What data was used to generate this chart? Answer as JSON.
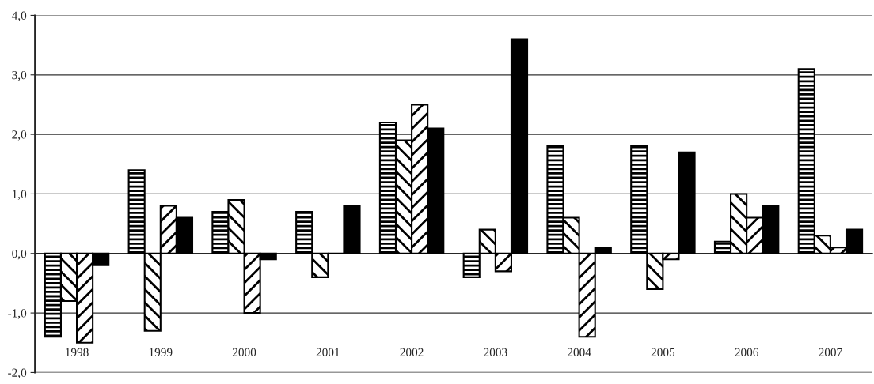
{
  "chart_data": {
    "type": "bar",
    "categories": [
      "1998",
      "1999",
      "2000",
      "2001",
      "2002",
      "2003",
      "2004",
      "2005",
      "2006",
      "2007"
    ],
    "series": [
      {
        "color": "#000000",
        "values": [
          -1.4,
          1.4,
          0.7,
          0.7,
          2.2,
          -0.4,
          1.8,
          1.8,
          0.2,
          3.1
        ]
      },
      {
        "color": "#000000",
        "values": [
          -0.8,
          -1.3,
          0.9,
          -0.4,
          1.9,
          0.4,
          0.6,
          -0.6,
          1.0,
          0.3
        ]
      },
      {
        "color": "#000000",
        "values": [
          -1.5,
          0.8,
          -1.0,
          0.0,
          2.5,
          -0.3,
          -1.4,
          -0.1,
          0.6,
          0.1
        ]
      },
      {
        "color": "#000000",
        "values": [
          -0.2,
          0.6,
          -0.1,
          0.8,
          2.1,
          3.6,
          0.1,
          1.7,
          0.8,
          0.4
        ]
      }
    ],
    "ylim": [
      -2,
      4
    ],
    "yticks": [
      {
        "value": -2,
        "label": "-2,0"
      },
      {
        "value": -1,
        "label": "-1,0"
      },
      {
        "value": 0,
        "label": "0,0"
      },
      {
        "value": 1,
        "label": "1,0"
      },
      {
        "value": 2,
        "label": "2,0"
      },
      {
        "value": 3,
        "label": "3,0"
      },
      {
        "value": 4,
        "label": "4,0"
      }
    ],
    "grid": "y",
    "legend": false
  }
}
